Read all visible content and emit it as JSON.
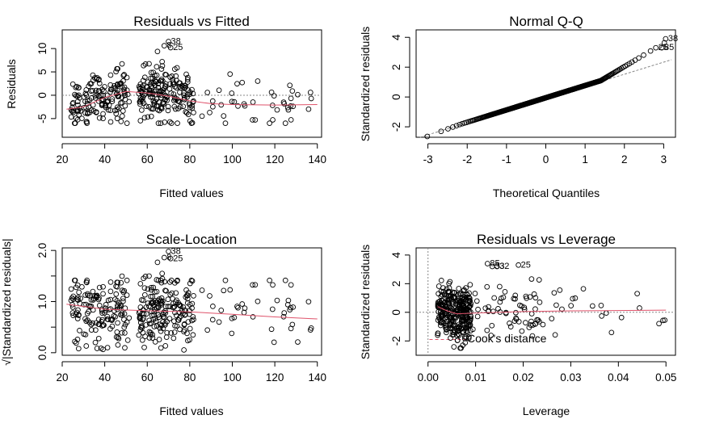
{
  "chart_data": [
    {
      "type": "scatter",
      "title": "Residuals vs Fitted",
      "xlabel": "Fitted values",
      "ylabel": "Residuals",
      "xlim": [
        20,
        142
      ],
      "ylim": [
        -9,
        14
      ],
      "xticks": [
        20,
        40,
        60,
        80,
        100,
        120,
        140
      ],
      "yticks": [
        -5,
        0,
        5,
        10
      ],
      "reference_line": 0,
      "smoother_color": "#DF536B",
      "smoother": [
        [
          22,
          -3
        ],
        [
          30,
          -2.5
        ],
        [
          40,
          -0.5
        ],
        [
          50,
          0.8
        ],
        [
          60,
          0.5
        ],
        [
          70,
          -0.2
        ],
        [
          80,
          -1.2
        ],
        [
          90,
          -1.8
        ],
        [
          100,
          -2
        ],
        [
          120,
          -2.1
        ],
        [
          140,
          -2
        ]
      ],
      "labeled_points": [
        {
          "label": "38",
          "x": 70,
          "y": 11.5
        },
        {
          "label": "8",
          "x": 68,
          "y": 10.6
        },
        {
          "label": "25",
          "x": 71,
          "y": 10.2
        }
      ],
      "points_summary": {
        "n": 400,
        "x_range": [
          22,
          139
        ],
        "y_range": [
          -6,
          11.5
        ]
      }
    },
    {
      "type": "scatter",
      "title": "Normal Q-Q",
      "xlabel": "Theoretical Quantiles",
      "ylabel": "Standardized residuals",
      "xlim": [
        -3.3,
        3.3
      ],
      "ylim": [
        -2.7,
        4.5
      ],
      "xticks": [
        -3,
        -2,
        -1,
        0,
        1,
        2,
        3
      ],
      "yticks": [
        -2,
        0,
        2,
        4
      ],
      "reference_line": {
        "from": [
          -3.2,
          -2.7
        ],
        "to": [
          3.2,
          2.5
        ]
      },
      "labeled_points": [
        {
          "label": "38",
          "x": 3.05,
          "y": 3.9
        },
        {
          "label": "25",
          "x": 2.8,
          "y": 3.3
        },
        {
          "label": "85",
          "x": 2.95,
          "y": 3.3
        }
      ],
      "points_summary": {
        "n": 400
      }
    },
    {
      "type": "scatter",
      "title": "Scale-Location",
      "xlabel": "Fitted values",
      "ylabel": "√|Standardized residuals|",
      "xlim": [
        20,
        142
      ],
      "ylim": [
        -0.05,
        2.05
      ],
      "xticks": [
        20,
        40,
        60,
        80,
        100,
        120,
        140
      ],
      "yticks": [
        0.0,
        0.5,
        1.0,
        1.5,
        2.0
      ],
      "ytick_labels": [
        "0.0",
        "1.0",
        "2.0"
      ],
      "smoother_color": "#DF536B",
      "smoother": [
        [
          22,
          0.95
        ],
        [
          40,
          0.85
        ],
        [
          60,
          0.82
        ],
        [
          80,
          0.8
        ],
        [
          100,
          0.75
        ],
        [
          120,
          0.7
        ],
        [
          140,
          0.66
        ]
      ],
      "labeled_points": [
        {
          "label": "38",
          "x": 70,
          "y": 1.98
        },
        {
          "label": "8",
          "x": 68,
          "y": 1.86
        },
        {
          "label": "25",
          "x": 71,
          "y": 1.84
        }
      ],
      "points_summary": {
        "n": 400
      }
    },
    {
      "type": "scatter",
      "title": "Residuals vs Leverage",
      "xlabel": "Leverage",
      "ylabel": "Standardized residuals",
      "xlim": [
        -0.0025,
        0.052
      ],
      "ylim": [
        -3.0,
        4.5
      ],
      "xticks": [
        0.0,
        0.01,
        0.02,
        0.03,
        0.04,
        0.05
      ],
      "xtick_labels": [
        "0.00",
        "0.01",
        "0.02",
        "0.03",
        "0.04",
        "0.05"
      ],
      "yticks": [
        -2,
        0,
        2,
        4
      ],
      "legend_text": "Cook's distance",
      "smoother_color": "#DF536B",
      "labeled_points": [
        {
          "label": "85",
          "x": 0.0125,
          "y": 3.4
        },
        {
          "label": "33",
          "x": 0.0135,
          "y": 3.2
        },
        {
          "label": "32",
          "x": 0.0145,
          "y": 3.2
        },
        {
          "label": "25",
          "x": 0.019,
          "y": 3.3
        }
      ],
      "points_summary": {
        "n": 400
      }
    }
  ]
}
